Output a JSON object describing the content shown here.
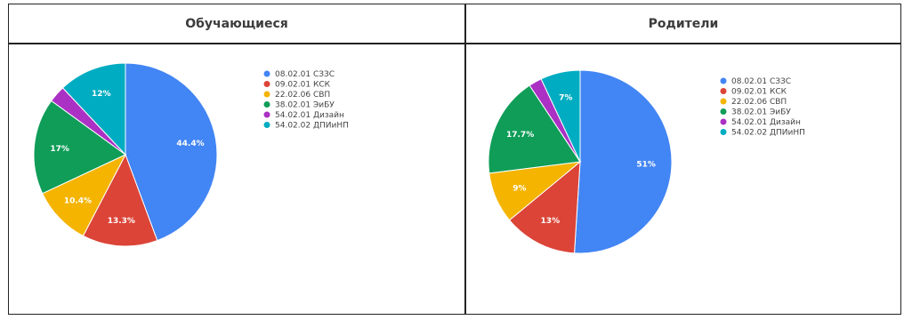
{
  "table": {
    "headers": [
      "Обучающиеся",
      "Родители"
    ]
  },
  "chart_data": [
    {
      "type": "pie",
      "title": "Обучающиеся",
      "categories": [
        "08.02.01 СЗЗС",
        "09.02.01 КСК",
        "22.02.06 СВП",
        "38.02.01 ЭиБУ",
        "54.02.01 Дизайн",
        "54.02.02 ДПИиНП"
      ],
      "values": [
        44.4,
        13.3,
        10.4,
        17,
        3.0,
        12
      ],
      "labels": [
        "44.4%",
        "13.3%",
        "10.4%",
        "17%",
        "",
        "12%"
      ],
      "colors": [
        "#4285f4",
        "#db4437",
        "#f4b400",
        "#0f9d58",
        "#ab30c4",
        "#00acc1"
      ],
      "legend_position": "right"
    },
    {
      "type": "pie",
      "title": "Родители",
      "categories": [
        "08.02.01 СЗЗС",
        "09.02.01 КСК",
        "22.02.06 СВП",
        "38.02.01 ЭиБУ",
        "54.02.01 Дизайн",
        "54.02.02 ДПИиНП"
      ],
      "values": [
        51,
        13,
        9,
        17.7,
        2.3,
        7
      ],
      "labels": [
        "51%",
        "13%",
        "9%",
        "17.7%",
        "",
        "7%"
      ],
      "colors": [
        "#4285f4",
        "#db4437",
        "#f4b400",
        "#0f9d58",
        "#ab30c4",
        "#00acc1"
      ],
      "legend_position": "right"
    }
  ]
}
